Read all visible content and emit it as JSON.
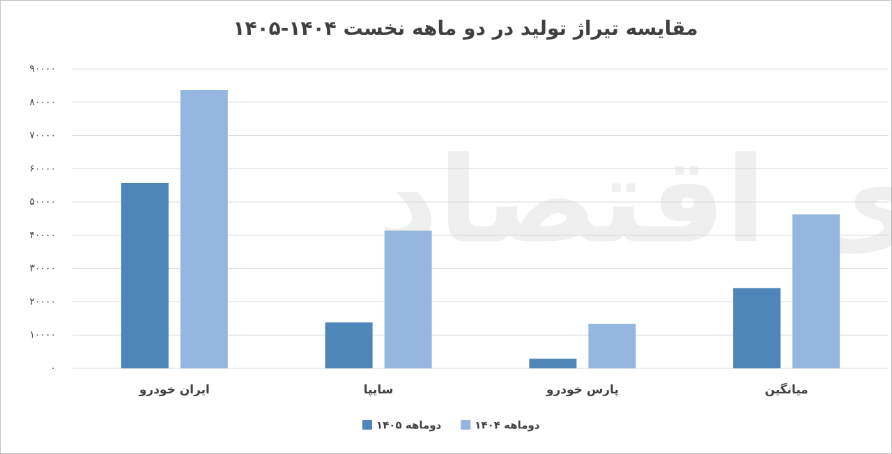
{
  "chart_data": {
    "type": "grouped_bar",
    "title": "مقایسه تیراژ تولید در دو ماهه نخست ۱۴۰۴-۱۴۰۵",
    "watermark": "دنیای اقتصاد",
    "categories": [
      "ایران خودرو",
      "سایپا",
      "پارس خودرو",
      "میانگین"
    ],
    "series": [
      {
        "name": "دوماهه ۱۴۰۵",
        "color": "#4f86b9",
        "values": [
          55700,
          13800,
          2900,
          24100
        ]
      },
      {
        "name": "دوماهه ۱۴۰۴",
        "color": "#95b7df",
        "values": [
          83700,
          41400,
          13400,
          46300
        ]
      }
    ],
    "ylim": [
      0,
      90000
    ],
    "yticks": [
      {
        "value": 0,
        "label": "۰"
      },
      {
        "value": 10000,
        "label": "۱۰۰۰۰"
      },
      {
        "value": 20000,
        "label": "۲۰۰۰۰"
      },
      {
        "value": 30000,
        "label": "۳۰۰۰۰"
      },
      {
        "value": 40000,
        "label": "۴۰۰۰۰"
      },
      {
        "value": 50000,
        "label": "۵۰۰۰۰"
      },
      {
        "value": 60000,
        "label": "۶۰۰۰۰"
      },
      {
        "value": 70000,
        "label": "۷۰۰۰۰"
      },
      {
        "value": 80000,
        "label": "۸۰۰۰۰"
      },
      {
        "value": 90000,
        "label": "۹۰۰۰۰"
      }
    ],
    "grid": true,
    "legend": "bottom"
  }
}
